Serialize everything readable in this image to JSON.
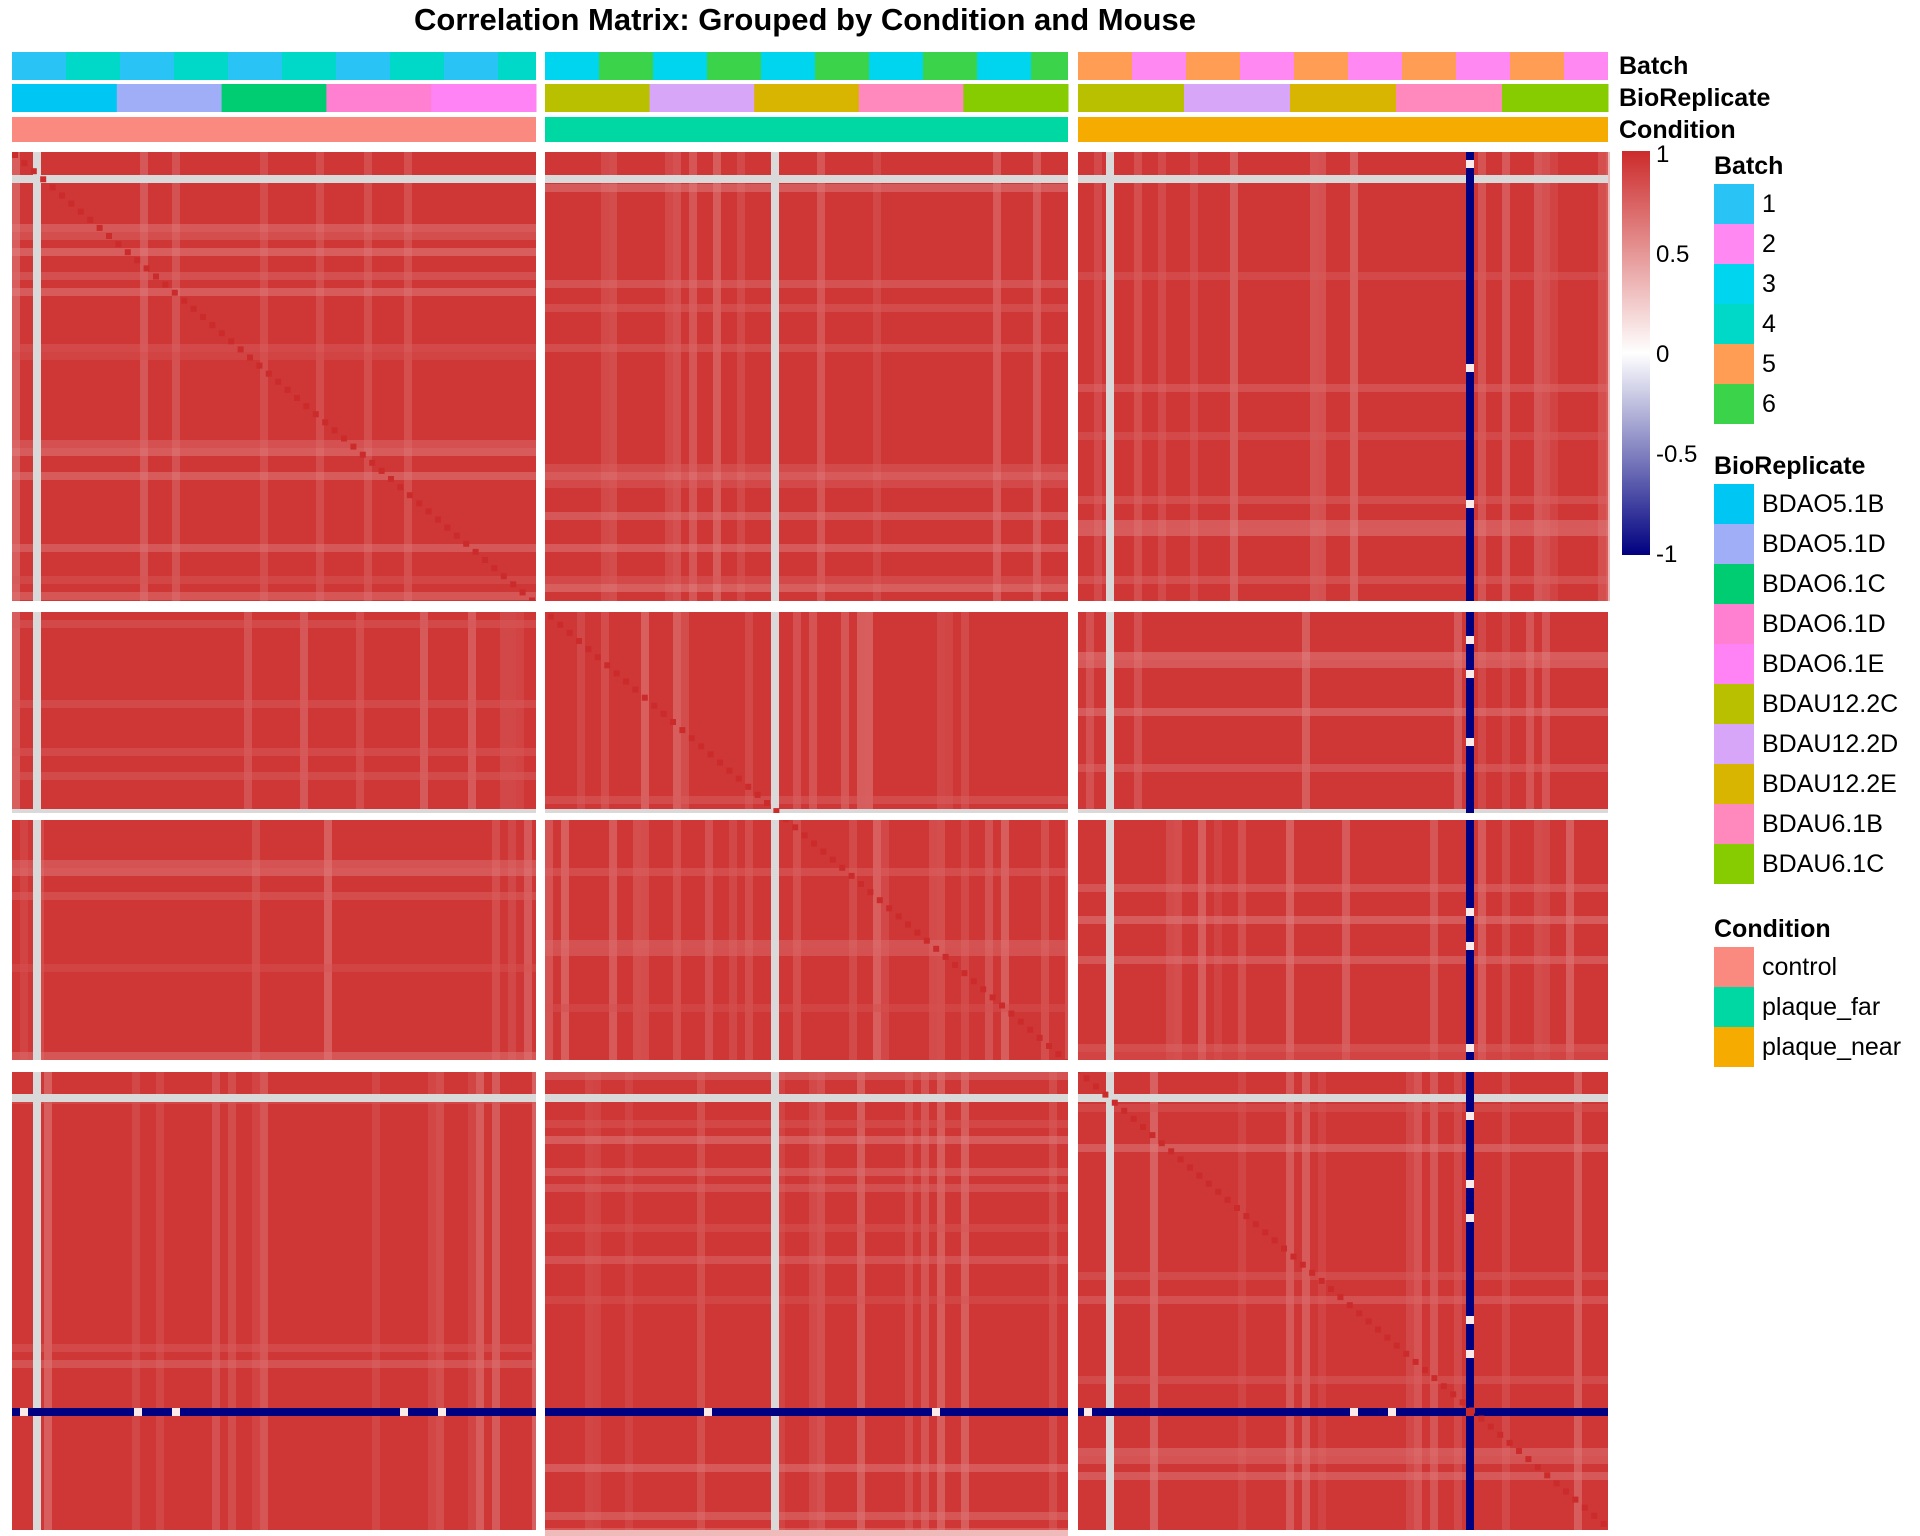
{
  "chart_data": {
    "type": "heatmap",
    "title": "Correlation Matrix: Grouped by Condition and Mouse",
    "value_range": [
      -1,
      1
    ],
    "colorbar": {
      "ticks": [
        "1",
        "0.5",
        "0",
        "-0.5",
        "-1"
      ],
      "colors": {
        "low": "#000080",
        "mid": "#ffffff",
        "high": "#cc2b2b"
      }
    },
    "column_annotations": [
      "Batch",
      "BioReplicate",
      "Condition"
    ],
    "conditions": [
      "control",
      "plaque_far",
      "plaque_near"
    ],
    "typical_correlation": 0.95,
    "legends": [
      {
        "title": "Batch",
        "items": [
          {
            "label": "1",
            "color": "#29c3f6"
          },
          {
            "label": "2",
            "color": "#ff88f2"
          },
          {
            "label": "3",
            "color": "#00d5f0"
          },
          {
            "label": "4",
            "color": "#00d8c8"
          },
          {
            "label": "5",
            "color": "#ff9d55"
          },
          {
            "label": "6",
            "color": "#3bd34a"
          }
        ]
      },
      {
        "title": "BioReplicate",
        "items": [
          {
            "label": "BDAO5.1B",
            "color": "#00c6f4"
          },
          {
            "label": "BDAO5.1D",
            "color": "#a0aef8"
          },
          {
            "label": "BDAO6.1C",
            "color": "#00cc72"
          },
          {
            "label": "BDAO6.1D",
            "color": "#ff80d0"
          },
          {
            "label": "BDAO6.1E",
            "color": "#ff83f5"
          },
          {
            "label": "BDAU12.2C",
            "color": "#b8c000"
          },
          {
            "label": "BDAU12.2D",
            "color": "#d8a6f8"
          },
          {
            "label": "BDAU12.2E",
            "color": "#d8b500"
          },
          {
            "label": "BDAU6.1B",
            "color": "#ff88bd"
          },
          {
            "label": "BDAU6.1C",
            "color": "#86cc00"
          }
        ]
      },
      {
        "title": "Condition",
        "items": [
          {
            "label": "control",
            "color": "#fa8a80"
          },
          {
            "label": "plaque_far",
            "color": "#00d8a4"
          },
          {
            "label": "plaque_near",
            "color": "#f5ab00"
          }
        ]
      }
    ]
  }
}
